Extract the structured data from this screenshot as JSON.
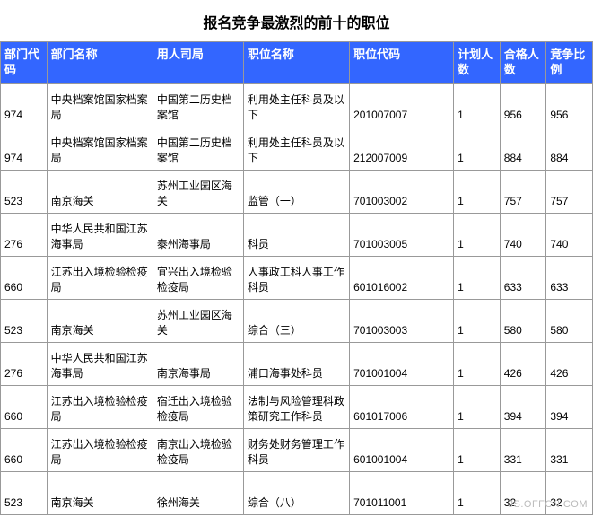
{
  "title": "报名竞争最激烈的前十的职位",
  "watermark": "JS.OFFCN.COM",
  "table": {
    "columns": [
      "部门代码",
      "部门名称",
      "用人司局",
      "职位名称",
      "职位代码",
      "计划人数",
      "合格人数",
      "竞争比例"
    ],
    "rows": [
      {
        "deptCode": "974",
        "deptName": "中央档案馆国家档案局",
        "bureau": "中国第二历史档案馆",
        "jobName": "利用处主任科员及以下",
        "jobCode": "201007007",
        "plan": "1",
        "pass": "956",
        "ratio": "956"
      },
      {
        "deptCode": "974",
        "deptName": "中央档案馆国家档案局",
        "bureau": "中国第二历史档案馆",
        "jobName": "利用处主任科员及以下",
        "jobCode": "212007009",
        "plan": "1",
        "pass": "884",
        "ratio": "884"
      },
      {
        "deptCode": "523",
        "deptName": "南京海关",
        "bureau": "苏州工业园区海关",
        "jobName": "监管（一）",
        "jobCode": "701003002",
        "plan": "1",
        "pass": "757",
        "ratio": "757"
      },
      {
        "deptCode": "276",
        "deptName": "中华人民共和国江苏海事局",
        "bureau": "泰州海事局",
        "jobName": "科员",
        "jobCode": "701003005",
        "plan": "1",
        "pass": "740",
        "ratio": "740"
      },
      {
        "deptCode": "660",
        "deptName": "江苏出入境检验检疫局",
        "bureau": "宜兴出入境检验检疫局",
        "jobName": "人事政工科人事工作科员",
        "jobCode": "601016002",
        "plan": "1",
        "pass": "633",
        "ratio": "633"
      },
      {
        "deptCode": "523",
        "deptName": "南京海关",
        "bureau": "苏州工业园区海关",
        "jobName": "综合（三）",
        "jobCode": "701003003",
        "plan": "1",
        "pass": "580",
        "ratio": "580"
      },
      {
        "deptCode": "276",
        "deptName": "中华人民共和国江苏海事局",
        "bureau": "南京海事局",
        "jobName": "浦口海事处科员",
        "jobCode": "701001004",
        "plan": "1",
        "pass": "426",
        "ratio": "426"
      },
      {
        "deptCode": "660",
        "deptName": "江苏出入境检验检疫局",
        "bureau": "宿迁出入境检验检疫局",
        "jobName": "法制与风险管理科政策研究工作科员",
        "jobCode": "601017006",
        "plan": "1",
        "pass": "394",
        "ratio": "394"
      },
      {
        "deptCode": "660",
        "deptName": "江苏出入境检验检疫局",
        "bureau": "南京出入境检验检疫局",
        "jobName": "财务处财务管理工作科员",
        "jobCode": "601001004",
        "plan": "1",
        "pass": "331",
        "ratio": "331"
      },
      {
        "deptCode": "523",
        "deptName": "南京海关",
        "bureau": "徐州海关",
        "jobName": "综合（八）",
        "jobCode": "701011001",
        "plan": "1",
        "pass": "32",
        "ratio": "32"
      }
    ]
  },
  "colors": {
    "headerBg": "#3366ff",
    "headerText": "#ffffff",
    "border": "#999999",
    "text": "#000000",
    "background": "#ffffff",
    "watermark": "#bbbbbb"
  }
}
